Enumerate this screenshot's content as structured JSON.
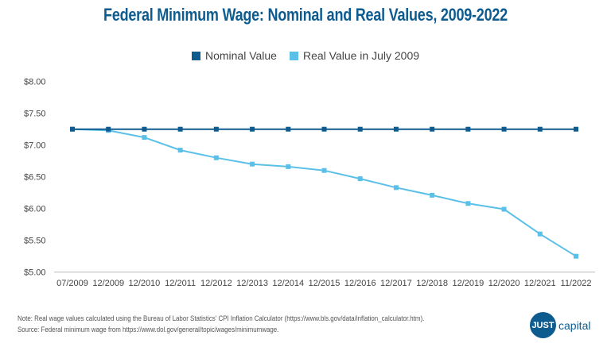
{
  "chart_data": {
    "type": "line",
    "title": "Federal Minimum Wage: Nominal and Real Values, 2009-2022",
    "categories": [
      "07/2009",
      "12/2009",
      "12/2010",
      "12/2011",
      "12/2012",
      "12/2013",
      "12/2014",
      "12/2015",
      "12/2016",
      "12/2017",
      "12/2018",
      "12/2019",
      "12/2020",
      "12/2021",
      "11/2022"
    ],
    "series": [
      {
        "name": "Nominal Value",
        "color": "#0e5b8f",
        "values": [
          7.25,
          7.25,
          7.25,
          7.25,
          7.25,
          7.25,
          7.25,
          7.25,
          7.25,
          7.25,
          7.25,
          7.25,
          7.25,
          7.25,
          7.25
        ]
      },
      {
        "name": "Real Value in July 2009",
        "color": "#5bc0e8",
        "values": [
          7.25,
          7.23,
          7.12,
          6.92,
          6.8,
          6.7,
          6.66,
          6.6,
          6.47,
          6.33,
          6.21,
          6.08,
          5.99,
          5.6,
          5.25
        ]
      }
    ],
    "yticks": [
      "$5.00",
      "$5.50",
      "$6.00",
      "$6.50",
      "$7.00",
      "$7.50",
      "$8.00"
    ],
    "ylim": [
      5,
      8
    ],
    "grid": false,
    "legend": "top-center"
  },
  "notes": {
    "line1": "Note: Real wage values calculated using the Bureau of Labor Statistics' CPI Inflation Calculator (https://www.bls.gov/data/inflation_calculator.htm).",
    "line2": "Source: Federal minimum wage from https://www.dol.gov/general/topic/wages/minimumwage."
  },
  "logo": {
    "mark": "JUST",
    "text": "capital"
  }
}
